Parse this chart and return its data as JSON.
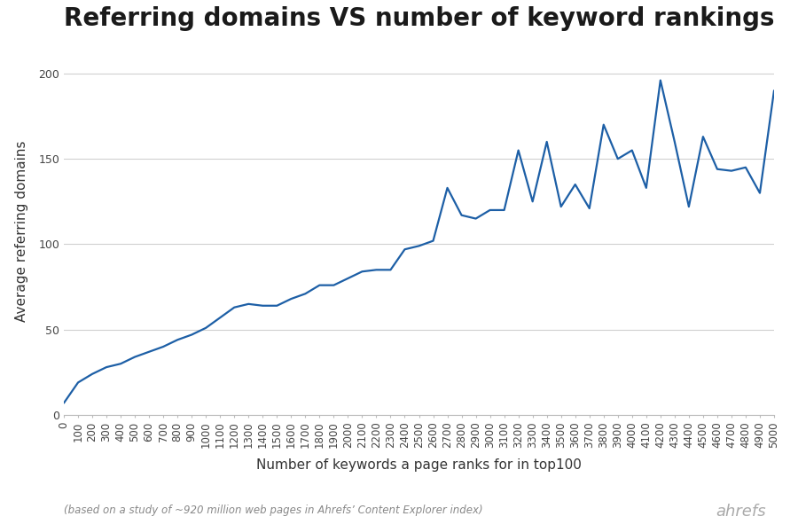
{
  "title": "Referring domains VS number of keyword rankings",
  "xlabel": "Number of keywords a page ranks for in top100",
  "ylabel": "Average referring domains",
  "footnote": "(based on a study of ~920 million web pages in Ahrefs’ Content Explorer index)",
  "watermark": "ahrefs",
  "line_color": "#1d5fa6",
  "background_color": "#ffffff",
  "grid_color": "#d0d0d0",
  "x_values": [
    0,
    100,
    200,
    300,
    400,
    500,
    600,
    700,
    800,
    900,
    1000,
    1100,
    1200,
    1300,
    1400,
    1500,
    1600,
    1700,
    1800,
    1900,
    2000,
    2100,
    2200,
    2300,
    2400,
    2500,
    2600,
    2700,
    2800,
    2900,
    3000,
    3100,
    3200,
    3300,
    3400,
    3500,
    3600,
    3700,
    3800,
    3900,
    4000,
    4100,
    4200,
    4300,
    4400,
    4500,
    4600,
    4700,
    4800,
    4900,
    5000
  ],
  "y_values": [
    7,
    19,
    24,
    28,
    30,
    34,
    37,
    40,
    44,
    47,
    51,
    57,
    63,
    65,
    64,
    64,
    68,
    71,
    76,
    76,
    80,
    84,
    85,
    85,
    97,
    99,
    102,
    133,
    117,
    115,
    120,
    120,
    155,
    125,
    160,
    122,
    135,
    121,
    170,
    150,
    155,
    133,
    196,
    160,
    122,
    163,
    144,
    143,
    145,
    130,
    190
  ],
  "ylim": [
    0,
    215
  ],
  "xlim": [
    0,
    5000
  ],
  "yticks": [
    0,
    50,
    100,
    150,
    200
  ],
  "line_width": 1.6,
  "title_fontsize": 20,
  "label_fontsize": 11,
  "tick_fontsize": 8.5
}
